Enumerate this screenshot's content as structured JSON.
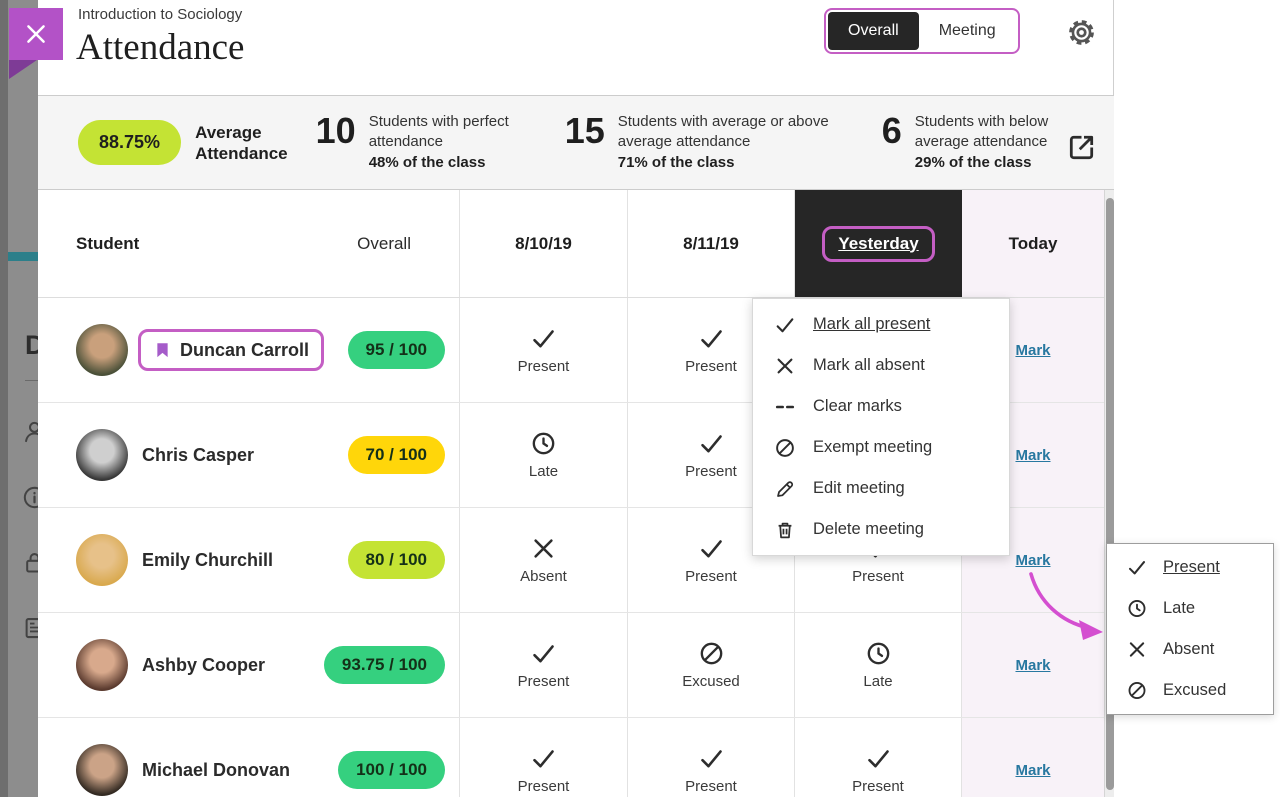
{
  "colors": {
    "accent_purple": "#c45ec4",
    "link_blue": "#2878a0",
    "green_pill": "#35d07f",
    "lime_pill": "#c4e334",
    "yellow_pill": "#ffd60a",
    "selected_header_bg": "#262626",
    "today_column_bg": "#f8f2f8",
    "arrow_magenta": "#d44fd0"
  },
  "overlay_sidebar": {
    "partial_heading": "D",
    "icons": [
      "person",
      "info",
      "lock",
      "clipboard"
    ]
  },
  "header": {
    "close_icon": "x",
    "course_title": "Introduction to Sociology",
    "page_title": "Attendance",
    "settings_icon": "gear",
    "view_toggle": {
      "selected": "Overall",
      "options": [
        "Overall",
        "Meeting"
      ]
    }
  },
  "stats": {
    "average_value": "88.75%",
    "average_label": "Average Attendance",
    "export_icon": "export",
    "groups": [
      {
        "count": "10",
        "description": "Students with perfect attendance",
        "percent": "48% of the class"
      },
      {
        "count": "15",
        "description": "Students with average or above average attendance",
        "percent": "71% of the class"
      },
      {
        "count": "6",
        "description": "Students with below average attendance",
        "percent": "29% of the class"
      }
    ]
  },
  "table": {
    "columns": {
      "student": "Student",
      "overall": "Overall",
      "col1": "8/10/19",
      "col2": "8/11/19",
      "col3": "Yesterday",
      "col4": "Today"
    },
    "selected_column": "Yesterday",
    "mark_label": "Mark",
    "rows": [
      {
        "name": "Duncan Carroll",
        "bookmark_icon": "bookmark",
        "score": "95 / 100",
        "score_color": "#35d07f",
        "avatar": {
          "skin": "#c9a07c",
          "hair": "#4a5038"
        },
        "col1": {
          "icon": "check",
          "label": "Present"
        },
        "col2": {
          "icon": "check",
          "label": "Present"
        },
        "col3": null
      },
      {
        "name": "Chris Casper",
        "score": "70 / 100",
        "score_color": "#ffd60a",
        "avatar": {
          "skin": "#cfcfcf",
          "hair": "#383838"
        },
        "col1": {
          "icon": "clock",
          "label": "Late"
        },
        "col2": {
          "icon": "check",
          "label": "Present"
        },
        "col3": null
      },
      {
        "name": "Emily Churchill",
        "score": "80 / 100",
        "score_color": "#c4e334",
        "avatar": {
          "skin": "#e7c189",
          "hair": "#d9a94e"
        },
        "col1": {
          "icon": "x",
          "label": "Absent"
        },
        "col2": {
          "icon": "check",
          "label": "Present"
        },
        "col3": {
          "icon": "check",
          "label": "Present"
        }
      },
      {
        "name": "Ashby Cooper",
        "score": "93.75 / 100",
        "score_color": "#35d07f",
        "avatar": {
          "skin": "#d8a98c",
          "hair": "#5a3a2e"
        },
        "col1": {
          "icon": "check",
          "label": "Present"
        },
        "col2": {
          "icon": "slash",
          "label": "Excused"
        },
        "col3": {
          "icon": "clock",
          "label": "Late"
        }
      },
      {
        "name": "Michael Donovan",
        "score": "100 / 100",
        "score_color": "#35d07f",
        "avatar": {
          "skin": "#cba387",
          "hair": "#332a22"
        },
        "col1": {
          "icon": "check",
          "label": "Present"
        },
        "col2": {
          "icon": "check",
          "label": "Present"
        },
        "col3": {
          "icon": "check",
          "label": "Present"
        }
      }
    ]
  },
  "meeting_menu": {
    "items": [
      {
        "icon": "check",
        "label": "Mark all present"
      },
      {
        "icon": "x",
        "label": "Mark all absent"
      },
      {
        "icon": "dash",
        "label": "Clear marks"
      },
      {
        "icon": "slash",
        "label": "Exempt meeting"
      },
      {
        "icon": "pencil",
        "label": "Edit meeting"
      },
      {
        "icon": "trash",
        "label": "Delete meeting"
      }
    ]
  },
  "status_menu": {
    "items": [
      {
        "icon": "check",
        "label": "Present"
      },
      {
        "icon": "clock",
        "label": "Late"
      },
      {
        "icon": "x",
        "label": "Absent"
      },
      {
        "icon": "slash",
        "label": "Excused"
      }
    ]
  }
}
